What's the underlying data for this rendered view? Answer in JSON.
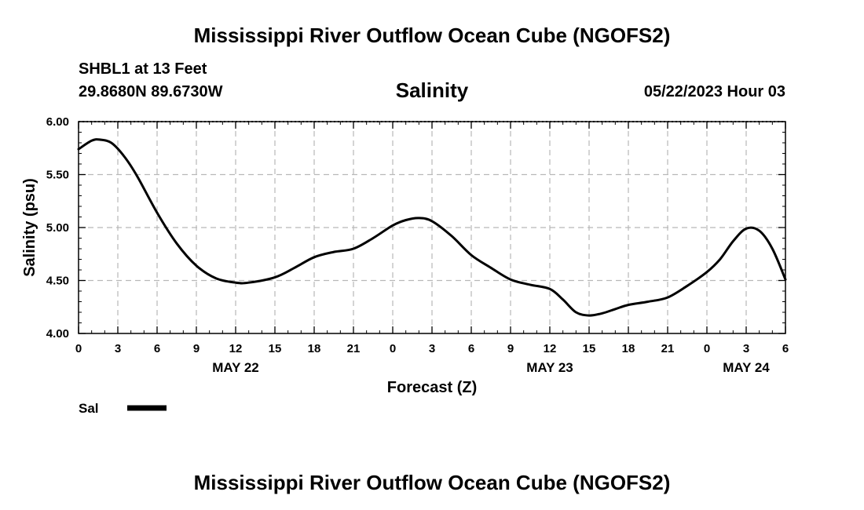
{
  "header": {
    "main_title": "Mississippi River Outflow Ocean Cube (NGOFS2)",
    "station": "SHBL1 at 13 Feet",
    "coordinates": "29.8680N  89.6730W",
    "run_time": "05/22/2023 Hour 03"
  },
  "footer": {
    "title": "Mississippi River Outflow Ocean Cube (NGOFS2)"
  },
  "chart_data": {
    "type": "line",
    "title": "Salinity",
    "xlabel": "Forecast (Z)",
    "ylabel": "Salinity (psu)",
    "xlim": [
      0,
      54
    ],
    "ylim": [
      4.0,
      6.0
    ],
    "grid": true,
    "x_ticks": [
      0,
      3,
      6,
      9,
      12,
      15,
      18,
      21,
      24,
      27,
      30,
      33,
      36,
      39,
      42,
      45,
      48,
      51,
      54
    ],
    "x_tick_labels": [
      "0",
      "3",
      "6",
      "9",
      "12",
      "15",
      "18",
      "21",
      "0",
      "3",
      "6",
      "9",
      "12",
      "15",
      "18",
      "21",
      "0",
      "3",
      "6"
    ],
    "y_ticks": [
      4.0,
      4.5,
      5.0,
      5.5,
      6.0
    ],
    "y_tick_labels": [
      "4.00",
      "4.50",
      "5.00",
      "5.50",
      "6.00"
    ],
    "day_labels": [
      {
        "x": 12,
        "label": "MAY 22"
      },
      {
        "x": 36,
        "label": "MAY 23"
      },
      {
        "x": 51,
        "label": "MAY 24"
      }
    ],
    "legend": {
      "position": "bottom-left",
      "entries": [
        {
          "label": "Sal",
          "color": "#000000"
        }
      ]
    },
    "series": [
      {
        "name": "Sal",
        "color": "#000000",
        "x": [
          0,
          1,
          1.6,
          2.5,
          3.5,
          4.5,
          6,
          7.5,
          9,
          10.5,
          12,
          13,
          15,
          16.5,
          18,
          19.5,
          21,
          22.5,
          24,
          25,
          26,
          27,
          28.5,
          30,
          31.5,
          33,
          34.5,
          36,
          37,
          38,
          39,
          40,
          41,
          42,
          43.5,
          45,
          46.5,
          48,
          49,
          50,
          51,
          52,
          53,
          54
        ],
        "values": [
          5.74,
          5.82,
          5.83,
          5.8,
          5.67,
          5.48,
          5.14,
          4.85,
          4.64,
          4.52,
          4.48,
          4.48,
          4.53,
          4.62,
          4.72,
          4.77,
          4.8,
          4.9,
          5.02,
          5.07,
          5.09,
          5.06,
          4.92,
          4.74,
          4.62,
          4.51,
          4.46,
          4.42,
          4.32,
          4.2,
          4.17,
          4.19,
          4.23,
          4.27,
          4.3,
          4.34,
          4.45,
          4.58,
          4.7,
          4.87,
          4.99,
          4.97,
          4.8,
          4.51
        ]
      }
    ]
  }
}
